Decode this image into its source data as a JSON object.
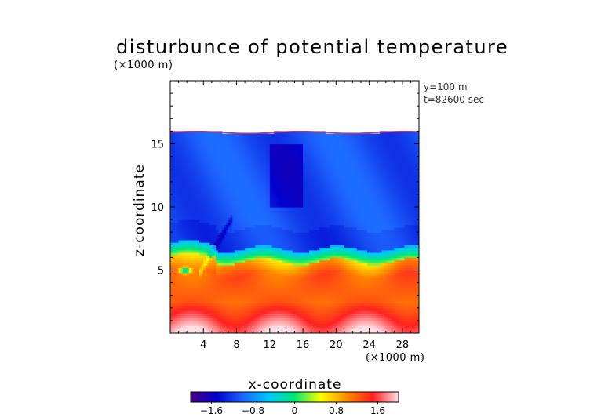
{
  "title": "disturbunce of potential temperature",
  "y_unit": "(×1000 m)",
  "x_unit": "(×1000 m)",
  "annotations": [
    "y=100 m",
    "t=82600 sec"
  ],
  "chart_data": {
    "type": "heatmap",
    "title": "disturbunce of potential temperature",
    "xlabel": "x-coordinate",
    "ylabel": "z-coordinate",
    "x_unit": "(×1000 m)",
    "y_unit": "(×1000 m)",
    "xlim": [
      0,
      30
    ],
    "ylim": [
      0,
      20
    ],
    "xticks": [
      4,
      8,
      12,
      16,
      20,
      24,
      28
    ],
    "yticks": [
      5,
      10,
      15
    ],
    "colorbar": {
      "min": -2.0,
      "max": 2.0,
      "ticks": [
        -1.6,
        -0.8,
        0,
        0.8,
        1.6
      ],
      "tick_labels": [
        "−1.6",
        "−0.8",
        "0",
        "0.8",
        "1.6"
      ],
      "colormap": [
        "#4b0082",
        "#0000cd",
        "#1e64ff",
        "#00c8ff",
        "#00e676",
        "#ffff00",
        "#ff8c00",
        "#ff2020",
        "#ffe0e6"
      ]
    },
    "annotations": [
      "y=100 m",
      "t=82600 sec"
    ],
    "fields": {
      "data_top_z": 15.9,
      "upper_layer_value": -1.1,
      "front_z": 6.1,
      "lower_layer_value": 1.2,
      "surface_value": 1.7,
      "cold_pocket": {
        "x": 1.8,
        "z": 5.0,
        "value": -0.6
      }
    }
  }
}
